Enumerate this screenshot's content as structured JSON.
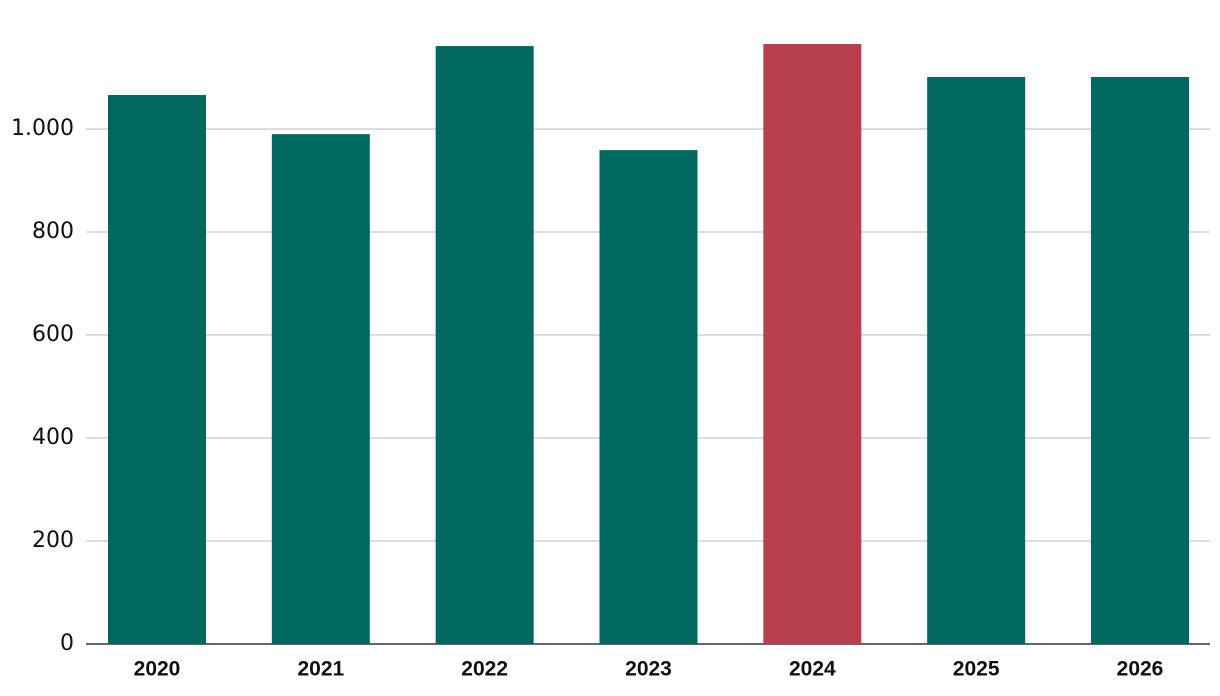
{
  "chart_data": {
    "type": "bar",
    "categories": [
      "2020",
      "2021",
      "2022",
      "2023",
      "2024",
      "2025",
      "2026"
    ],
    "values": [
      1066,
      990,
      1161,
      959,
      1165,
      1101,
      1101
    ],
    "colors": [
      "#00695f",
      "#00695f",
      "#00695f",
      "#00695f",
      "#b83f4c",
      "#00695f",
      "#00695f"
    ],
    "ylim": [
      0,
      1200
    ],
    "yticks": [
      0,
      200,
      400,
      600,
      800,
      {
        "value": 1000,
        "label": "1.000"
      }
    ],
    "grid": true
  }
}
